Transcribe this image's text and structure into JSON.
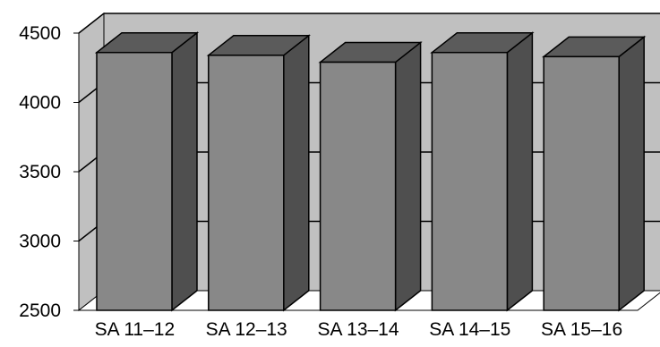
{
  "chart_data": {
    "type": "bar",
    "style": "3d",
    "categories": [
      "SA 11–12",
      "SA 12–13",
      "SA 13–14",
      "SA 14–15",
      "SA 15–16"
    ],
    "values": [
      4360,
      4340,
      4290,
      4360,
      4330
    ],
    "ylim": [
      2500,
      4500
    ],
    "yticks": [
      2500,
      3000,
      3500,
      4000,
      4500
    ],
    "title": "",
    "xlabel": "",
    "ylabel": "",
    "grid": true,
    "legend": "none",
    "colors": {
      "bar_front": "#888888",
      "bar_top": "#5b5b5b",
      "bar_side": "#4f4f4f",
      "back_wall": "#c0c0c0",
      "floor": "#ffffff",
      "gridline": "#000000",
      "edge": "#000000"
    }
  }
}
